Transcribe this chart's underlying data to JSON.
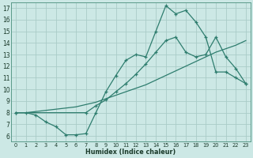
{
  "xlabel": "Humidex (Indice chaleur)",
  "bg_color": "#cce8e5",
  "line_color": "#2e7d6e",
  "grid_color": "#aaccc8",
  "xlim": [
    -0.5,
    23.5
  ],
  "ylim": [
    5.5,
    17.5
  ],
  "xticks": [
    0,
    1,
    2,
    3,
    4,
    5,
    6,
    7,
    8,
    9,
    10,
    11,
    12,
    13,
    14,
    15,
    16,
    17,
    18,
    19,
    20,
    21,
    22,
    23
  ],
  "yticks": [
    6,
    7,
    8,
    9,
    10,
    11,
    12,
    13,
    14,
    15,
    16,
    17
  ],
  "line1_x": [
    0,
    1,
    2,
    3,
    4,
    5,
    6,
    7,
    8,
    9,
    10,
    11,
    12,
    13,
    14,
    15,
    16,
    17,
    18,
    19,
    20,
    21,
    22,
    23
  ],
  "line1_y": [
    8.0,
    8.0,
    7.8,
    7.2,
    6.8,
    6.1,
    6.1,
    6.2,
    8.0,
    9.8,
    11.2,
    12.5,
    13.0,
    12.8,
    15.0,
    17.2,
    16.5,
    16.8,
    15.8,
    14.5,
    11.5,
    11.5,
    11.0,
    10.5
  ],
  "line2_x": [
    0,
    1,
    2,
    3,
    4,
    5,
    6,
    7,
    8,
    9,
    10,
    11,
    12,
    13,
    14,
    15,
    16,
    17,
    18,
    19,
    20,
    21,
    22,
    23
  ],
  "line2_y": [
    8.0,
    8.0,
    8.1,
    8.2,
    8.3,
    8.4,
    8.5,
    8.7,
    8.9,
    9.2,
    9.5,
    9.8,
    10.1,
    10.4,
    10.8,
    11.2,
    11.6,
    12.0,
    12.4,
    12.8,
    13.2,
    13.5,
    13.8,
    14.2
  ],
  "line3_x": [
    0,
    7,
    8,
    9,
    10,
    11,
    12,
    13,
    14,
    15,
    16,
    17,
    18,
    19,
    20,
    21,
    22,
    23
  ],
  "line3_y": [
    8.0,
    8.0,
    8.6,
    9.1,
    9.8,
    10.5,
    11.3,
    12.2,
    13.2,
    14.2,
    14.5,
    13.2,
    12.8,
    13.0,
    14.5,
    12.8,
    11.8,
    10.5
  ]
}
